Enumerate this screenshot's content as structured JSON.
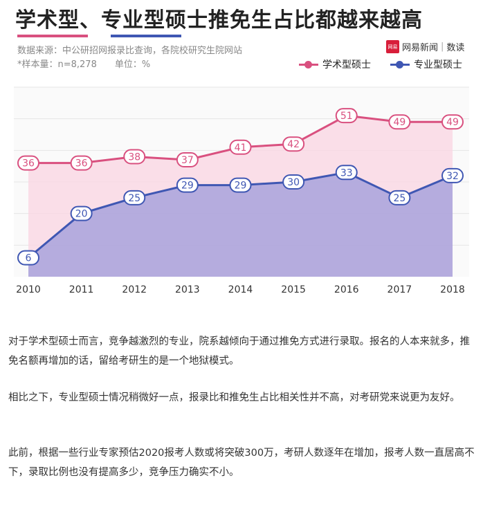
{
  "title": "学术型、专业型硕士推免生占比都越来越高",
  "source": "数据来源：中公研招网报录比查询，各院校研究生院网站",
  "sample": "*样本量：n=8,278",
  "unit": "单位：%",
  "logo": {
    "brand": "网易新闻",
    "section": "数读",
    "mark": "网易"
  },
  "colors": {
    "academic": "#d9507f",
    "professional": "#3f57b3"
  },
  "chart_data": {
    "type": "line",
    "categories": [
      "2010",
      "2011",
      "2012",
      "2013",
      "2014",
      "2015",
      "2016",
      "2017",
      "2018"
    ],
    "series": [
      {
        "name": "学术型硕士",
        "values": [
          36,
          36,
          38,
          37,
          41,
          42,
          51,
          49,
          49
        ]
      },
      {
        "name": "专业型硕士",
        "values": [
          6,
          20,
          25,
          29,
          29,
          30,
          33,
          25,
          32
        ]
      }
    ],
    "ylim": [
      0,
      60
    ],
    "grid": true,
    "legend": "top-right",
    "area_fill": true
  },
  "article": {
    "p1": "对于学术型硕士而言，竞争越激烈的专业，院系越倾向于通过推免方式进行录取。报名的人本来就多，推免名额再增加的话，留给考研生的是一个地狱模式。",
    "p2": "相比之下，专业型硕士情况稍微好一点，报录比和推免生占比相关性并不高，对考研党来说更为友好。",
    "p3": "此前，根据一些行业专家预估2020报考人数或将突破300万，考研人数逐年在增加，报考人数一直居高不下，录取比例也没有提高多少，竞争压力确实不小。"
  }
}
